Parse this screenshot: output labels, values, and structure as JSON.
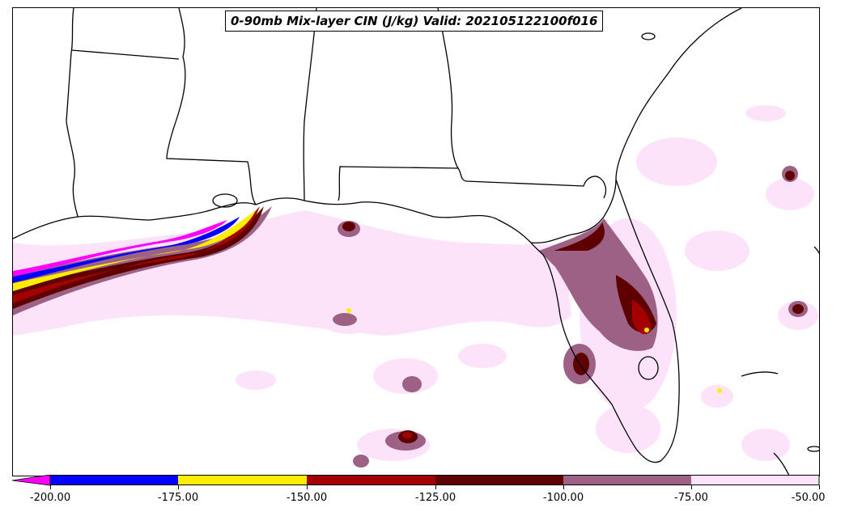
{
  "title": "0-90mb Mix-layer CIN (J/kg) Valid: 202105122100f016",
  "colorbar": {
    "ticks": [
      "-200.00",
      "-175.00",
      "-150.00",
      "-125.00",
      "-100.00",
      "-75.00",
      "-50.00"
    ],
    "levels": [
      -200,
      -175,
      -150,
      -125,
      -100,
      -75,
      -50
    ],
    "extend": "min",
    "colors": {
      "below_min": "#ff00ff",
      "-200_-175": "#0000ff",
      "-175_-150": "#ffee00",
      "-150_-125": "#a50000",
      "-125_-100": "#5e0000",
      "-100_-75": "#9c6185",
      "-75_-50": "#fde3fa"
    }
  }
}
